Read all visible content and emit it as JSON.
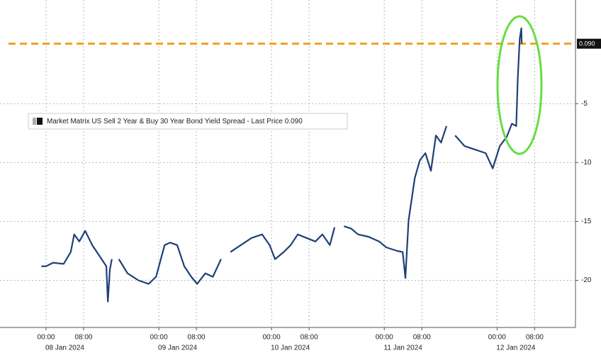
{
  "chart_data": {
    "type": "line",
    "x": [
      "2024-01-07 23:00",
      "2024-01-08 00:00",
      "2024-01-08 01:30",
      "2024-01-08 03:45",
      "2024-01-08 05:15",
      "2024-01-08 06:00",
      "2024-01-08 07:05",
      "2024-01-08 08:20",
      "2024-01-08 09:50",
      "2024-01-08 11:20",
      "2024-01-08 12:50",
      "2024-01-08 13:10",
      "2024-01-08 13:35",
      "2024-01-08 14:00",
      "2024-01-08 14:45",
      "2024-01-08 15:30",
      "2024-01-08 17:20",
      "2024-01-08 19:40",
      "2024-01-08 21:50",
      "2024-01-08 23:25",
      "2024-01-09 01:15",
      "2024-01-09 02:25",
      "2024-01-09 03:55",
      "2024-01-09 05:25",
      "2024-01-09 06:55",
      "2024-01-09 08:10",
      "2024-01-09 09:55",
      "2024-01-09 11:30",
      "2024-01-09 13:15",
      "2024-01-09 14:30",
      "2024-01-09 15:15",
      "2024-01-09 17:30",
      "2024-01-09 19:45",
      "2024-01-09 22:00",
      "2024-01-09 23:35",
      "2024-01-10 00:45",
      "2024-01-10 02:35",
      "2024-01-10 04:05",
      "2024-01-10 05:35",
      "2024-01-10 07:25",
      "2024-01-10 09:20",
      "2024-01-10 10:50",
      "2024-01-10 12:25",
      "2024-01-10 13:25",
      "2024-01-10 14:20",
      "2024-01-10 15:25",
      "2024-01-10 16:55",
      "2024-01-10 18:25",
      "2024-01-10 20:40",
      "2024-01-10 22:55",
      "2024-01-11 00:25",
      "2024-01-11 02:45",
      "2024-01-11 03:55",
      "2024-01-11 04:30",
      "2024-01-11 05:10",
      "2024-01-11 06:30",
      "2024-01-11 07:35",
      "2024-01-11 08:45",
      "2024-01-11 09:55",
      "2024-01-11 11:00",
      "2024-01-11 12:05",
      "2024-01-11 13:15",
      "2024-01-11 14:00",
      "2024-01-11 15:05",
      "2024-01-11 17:05",
      "2024-01-11 19:20",
      "2024-01-11 21:35",
      "2024-01-11 23:05",
      "2024-01-12 00:35",
      "2024-01-12 02:05",
      "2024-01-12 03:10",
      "2024-01-12 04:05",
      "2024-01-12 04:25",
      "2024-01-12 04:50",
      "2024-01-12 05:10",
      "2024-01-12 05:15"
    ],
    "series": [
      {
        "name": "Market Matrix US Sell 2 Year & Buy 30 Year Bond Yield Spread - Last Price 0.090",
        "color": "#1f3f78",
        "values": [
          -18.8,
          -18.8,
          -18.5,
          -18.6,
          -17.6,
          -16.1,
          -16.7,
          -15.8,
          -17.0,
          -17.9,
          -18.8,
          -21.8,
          -19.1,
          -18.2,
          null,
          -18.2,
          -19.4,
          -20.0,
          -20.3,
          -19.7,
          -17.0,
          -16.8,
          -17.0,
          -18.8,
          -19.7,
          -20.3,
          -19.4,
          -19.7,
          -18.2,
          null,
          -17.6,
          -17.0,
          -16.4,
          -16.1,
          -17.0,
          -18.2,
          -17.6,
          -17.0,
          -16.1,
          -16.4,
          -16.7,
          -16.1,
          -17.0,
          -15.5,
          null,
          -15.4,
          -15.6,
          -16.1,
          -16.3,
          -16.7,
          -17.2,
          -17.5,
          -17.6,
          -19.8,
          -14.9,
          -11.3,
          -9.8,
          -9.2,
          -10.7,
          -7.7,
          -8.3,
          -6.9,
          null,
          -7.7,
          -8.6,
          -8.9,
          -9.2,
          -10.5,
          -8.6,
          -7.8,
          -6.7,
          -6.9,
          -2.8,
          0.5,
          1.4,
          0.09
        ]
      }
    ],
    "xlim": [
      "2024-01-07 14:12",
      "2024-01-12 16:42"
    ],
    "ylim": [
      -24,
      3.8
    ],
    "yticks": [
      -5,
      -10,
      -15,
      -20
    ],
    "xticks": [
      {
        "value": "2024-01-08 00:00",
        "label": "00:00"
      },
      {
        "value": "2024-01-08 08:00",
        "label": "08:00"
      },
      {
        "value": "2024-01-09 00:00",
        "label": "00:00"
      },
      {
        "value": "2024-01-09 08:00",
        "label": "08:00"
      },
      {
        "value": "2024-01-10 00:00",
        "label": "00:00"
      },
      {
        "value": "2024-01-10 08:00",
        "label": "08:00"
      },
      {
        "value": "2024-01-11 00:00",
        "label": "00:00"
      },
      {
        "value": "2024-01-11 08:00",
        "label": "08:00"
      },
      {
        "value": "2024-01-12 00:00",
        "label": "00:00"
      },
      {
        "value": "2024-01-12 08:00",
        "label": "08:00"
      }
    ],
    "date_labels": [
      {
        "value": "2024-01-08 04:00",
        "label": "08 Jan 2024"
      },
      {
        "value": "2024-01-09 04:00",
        "label": "09 Jan 2024"
      },
      {
        "value": "2024-01-10 04:00",
        "label": "10 Jan 2024"
      },
      {
        "value": "2024-01-11 04:00",
        "label": "11 Jan 2024"
      },
      {
        "value": "2024-01-12 04:00",
        "label": "12 Jan 2024"
      }
    ],
    "reference_line": {
      "value": 0.09,
      "label": "0.090",
      "color": "#f0a020"
    },
    "grid": true
  }
}
